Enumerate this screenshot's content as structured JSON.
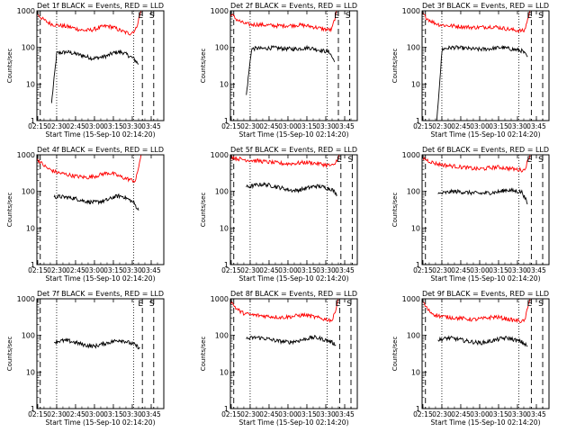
{
  "figure": {
    "start_time_label": "Start Time (15-Sep-10 02:14:20)",
    "ylabel": "Counts/sec",
    "markers": {
      "e": "E",
      "s": "S"
    }
  },
  "colors": {
    "events": "#000000",
    "lld": "#ff0000"
  },
  "chart_data": [
    {
      "type": "line",
      "title": "Det 1f BLACK = Events, RED = LLD",
      "xlabel": "Start Time (15-Sep-10 02:14:20)",
      "ylabel": "Counts/sec",
      "x_range": [
        "02:14:20",
        "03:55:00"
      ],
      "ylim": [
        1,
        1000
      ],
      "y_scale": "log",
      "x_ticks": [
        "02:15",
        "02:30",
        "02:45",
        "03:00",
        "03:15",
        "03:30",
        "03:45"
      ],
      "y_ticks": [
        "1",
        "10",
        "100",
        "1000"
      ],
      "series": [
        {
          "name": "Events",
          "color": "#000000",
          "x_start": "02:26",
          "x_end": "03:35",
          "values": [
            3,
            70,
            72,
            75,
            70,
            65,
            60,
            55,
            50,
            52,
            55,
            60,
            70,
            75,
            72,
            60,
            50,
            35
          ]
        },
        {
          "name": "LLD",
          "color": "#ff0000",
          "x_start": "02:14:20",
          "x_end": "03:37",
          "values": [
            850,
            600,
            480,
            420,
            400,
            380,
            360,
            330,
            300,
            290,
            300,
            330,
            370,
            380,
            350,
            300,
            260,
            240,
            300,
            1000
          ]
        }
      ],
      "vlines": {
        "dotted": [
          "02:30",
          "03:31"
        ],
        "dashed": [
          "02:17",
          "03:38",
          "03:47"
        ]
      },
      "markers": [
        "E",
        "S"
      ]
    },
    {
      "type": "line",
      "title": "Det 2f BLACK = Events, RED = LLD",
      "xlabel": "Start Time (15-Sep-10 02:14:20)",
      "ylabel": "Counts/sec",
      "x_range": [
        "02:14:20",
        "03:55:00"
      ],
      "ylim": [
        1,
        1000
      ],
      "y_scale": "log",
      "x_ticks": [
        "02:15",
        "02:30",
        "02:45",
        "03:00",
        "03:15",
        "03:30",
        "03:45"
      ],
      "y_ticks": [
        "1",
        "10",
        "100",
        "1000"
      ],
      "series": [
        {
          "name": "Events",
          "color": "#000000",
          "x_start": "02:27",
          "x_end": "03:37",
          "values": [
            5,
            90,
            95,
            92,
            95,
            98,
            95,
            93,
            92,
            90,
            92,
            95,
            98,
            92,
            85,
            80,
            75,
            40
          ]
        },
        {
          "name": "LLD",
          "color": "#ff0000",
          "x_start": "02:14:20",
          "x_end": "03:39",
          "values": [
            850,
            600,
            480,
            430,
            420,
            420,
            410,
            400,
            390,
            390,
            395,
            400,
            410,
            400,
            380,
            360,
            330,
            310,
            300,
            1000
          ]
        }
      ],
      "vlines": {
        "dotted": [
          "02:30",
          "03:31"
        ],
        "dashed": [
          "02:17",
          "03:40",
          "03:49"
        ]
      },
      "markers": [
        "E",
        "S"
      ]
    },
    {
      "type": "line",
      "title": "Det 3f BLACK = Events, RED = LLD",
      "xlabel": "Start Time (15-Sep-10 02:14:20)",
      "ylabel": "Counts/sec",
      "x_range": [
        "02:14:20",
        "03:55:00"
      ],
      "ylim": [
        1,
        1000
      ],
      "y_scale": "log",
      "x_ticks": [
        "02:15",
        "02:30",
        "02:45",
        "03:00",
        "03:15",
        "03:30",
        "03:45"
      ],
      "y_ticks": [
        "1",
        "10",
        "100",
        "1000"
      ],
      "series": [
        {
          "name": "Events",
          "color": "#000000",
          "x_start": "02:26",
          "x_end": "03:38",
          "values": [
            1,
            90,
            95,
            100,
            98,
            95,
            92,
            90,
            88,
            90,
            92,
            95,
            100,
            95,
            90,
            85,
            80,
            55
          ]
        },
        {
          "name": "LLD",
          "color": "#ff0000",
          "x_start": "02:14:20",
          "x_end": "03:40",
          "values": [
            850,
            600,
            480,
            420,
            400,
            390,
            380,
            370,
            360,
            350,
            355,
            360,
            370,
            360,
            340,
            320,
            300,
            290,
            280,
            1000
          ]
        }
      ],
      "vlines": {
        "dotted": [
          "02:30",
          "03:31"
        ],
        "dashed": [
          "02:17",
          "03:41",
          "03:50"
        ]
      },
      "markers": [
        "E",
        "S"
      ]
    },
    {
      "type": "line",
      "title": "Det 4f BLACK = Events, RED = LLD",
      "xlabel": "Start Time (15-Sep-10 02:14:20)",
      "ylabel": "Counts/sec",
      "x_range": [
        "02:14:20",
        "03:55:00"
      ],
      "ylim": [
        1,
        1000
      ],
      "y_scale": "log",
      "x_ticks": [
        "02:15",
        "02:30",
        "02:45",
        "03:00",
        "03:15",
        "03:30",
        "03:45"
      ],
      "y_ticks": [
        "1",
        "10",
        "100",
        "1000"
      ],
      "series": [
        {
          "name": "Events",
          "color": "#000000",
          "x_start": "02:28",
          "x_end": "03:35",
          "values": [
            70,
            72,
            70,
            68,
            65,
            60,
            55,
            52,
            50,
            52,
            55,
            60,
            70,
            75,
            72,
            60,
            50,
            30
          ]
        },
        {
          "name": "LLD",
          "color": "#ff0000",
          "x_start": "02:14:20",
          "x_end": "03:37",
          "values": [
            800,
            550,
            420,
            360,
            320,
            300,
            280,
            260,
            250,
            240,
            250,
            270,
            300,
            320,
            300,
            260,
            230,
            210,
            190,
            1000
          ]
        }
      ],
      "vlines": {
        "dotted": [
          "02:30",
          "03:31"
        ],
        "dashed": [
          "02:17"
        ]
      },
      "markers": []
    },
    {
      "type": "line",
      "title": "Det 5f BLACK = Events, RED = LLD",
      "xlabel": "Start Time (15-Sep-10 02:14:20)",
      "ylabel": "Counts/sec",
      "x_range": [
        "02:14:20",
        "03:55:00"
      ],
      "ylim": [
        1,
        1000
      ],
      "y_scale": "log",
      "x_ticks": [
        "02:15",
        "02:30",
        "02:45",
        "03:00",
        "03:15",
        "03:30",
        "03:45"
      ],
      "y_ticks": [
        "1",
        "10",
        "100",
        "1000"
      ],
      "series": [
        {
          "name": "Events",
          "color": "#000000",
          "x_start": "02:27",
          "x_end": "03:39",
          "values": [
            130,
            140,
            150,
            155,
            150,
            140,
            130,
            120,
            110,
            105,
            110,
            120,
            130,
            140,
            135,
            125,
            115,
            80
          ]
        },
        {
          "name": "LLD",
          "color": "#ff0000",
          "x_start": "02:14:20",
          "x_end": "03:41",
          "values": [
            900,
            800,
            750,
            720,
            700,
            680,
            650,
            620,
            600,
            580,
            570,
            580,
            600,
            620,
            610,
            580,
            550,
            520,
            500,
            1000
          ]
        }
      ],
      "vlines": {
        "dotted": [
          "02:30",
          "03:31"
        ],
        "dashed": [
          "02:17",
          "03:42",
          "03:51"
        ]
      },
      "markers": [
        "E",
        "S"
      ]
    },
    {
      "type": "line",
      "title": "Det 6f BLACK = Events, RED = LLD",
      "xlabel": "Start Time (15-Sep-10 02:14:20)",
      "ylabel": "Counts/sec",
      "x_range": [
        "02:14:20",
        "03:55:00"
      ],
      "ylim": [
        1,
        1000
      ],
      "y_scale": "log",
      "x_ticks": [
        "02:15",
        "02:30",
        "02:45",
        "03:00",
        "03:15",
        "03:30",
        "03:45"
      ],
      "y_ticks": [
        "1",
        "10",
        "100",
        "1000"
      ],
      "series": [
        {
          "name": "Events",
          "color": "#000000",
          "x_start": "02:27",
          "x_end": "03:38",
          "values": [
            85,
            90,
            95,
            100,
            98,
            95,
            92,
            90,
            88,
            90,
            92,
            95,
            100,
            110,
            105,
            100,
            95,
            45
          ]
        },
        {
          "name": "LLD",
          "color": "#ff0000",
          "x_start": "02:14:20",
          "x_end": "03:40",
          "values": [
            850,
            700,
            600,
            550,
            520,
            500,
            480,
            460,
            440,
            420,
            410,
            420,
            440,
            460,
            450,
            430,
            410,
            390,
            380,
            1000
          ]
        }
      ],
      "vlines": {
        "dotted": [
          "02:30",
          "03:31"
        ],
        "dashed": [
          "02:17",
          "03:41",
          "03:50"
        ]
      },
      "markers": [
        "E",
        "S"
      ]
    },
    {
      "type": "line",
      "title": "Det 7f BLACK = Events, RED = LLD",
      "xlabel": "Start Time (15-Sep-10 02:14:20)",
      "ylabel": "Counts/sec",
      "x_range": [
        "02:14:20",
        "03:55:00"
      ],
      "ylim": [
        1,
        1000
      ],
      "y_scale": "log",
      "x_ticks": [
        "02:15",
        "02:30",
        "02:45",
        "03:00",
        "03:15",
        "03:30",
        "03:45"
      ],
      "y_ticks": [
        "1",
        "10",
        "100",
        "1000"
      ],
      "series": [
        {
          "name": "Events",
          "color": "#000000",
          "x_start": "02:28",
          "x_end": "03:36",
          "values": [
            65,
            70,
            72,
            70,
            65,
            60,
            55,
            52,
            50,
            55,
            60,
            65,
            70,
            75,
            70,
            62,
            55,
            45
          ]
        }
      ],
      "vlines": {
        "dotted": [
          "02:30",
          "03:31"
        ],
        "dashed": [
          "02:17",
          "03:38",
          "03:47"
        ]
      },
      "markers": [
        "E",
        "S"
      ]
    },
    {
      "type": "line",
      "title": "Det 8f BLACK = Events, RED = LLD",
      "xlabel": "Start Time (15-Sep-10 02:14:20)",
      "ylabel": "Counts/sec",
      "x_range": [
        "02:14:20",
        "03:55:00"
      ],
      "ylim": [
        1,
        1000
      ],
      "y_scale": "log",
      "x_ticks": [
        "02:15",
        "02:30",
        "02:45",
        "03:00",
        "03:15",
        "03:30",
        "03:45"
      ],
      "y_ticks": [
        "1",
        "10",
        "100",
        "1000"
      ],
      "series": [
        {
          "name": "Events",
          "color": "#000000",
          "x_start": "02:27",
          "x_end": "03:38",
          "values": [
            80,
            85,
            88,
            85,
            80,
            75,
            70,
            68,
            65,
            68,
            72,
            78,
            85,
            88,
            82,
            75,
            68,
            55
          ]
        },
        {
          "name": "LLD",
          "color": "#ff0000",
          "x_start": "02:14:20",
          "x_end": "03:40",
          "values": [
            900,
            550,
            420,
            380,
            360,
            350,
            340,
            330,
            320,
            310,
            320,
            330,
            350,
            360,
            340,
            310,
            290,
            270,
            260,
            1000
          ]
        }
      ],
      "vlines": {
        "dotted": [
          "02:30",
          "03:31"
        ],
        "dashed": [
          "02:17",
          "03:41",
          "03:50"
        ]
      },
      "markers": [
        "E",
        "S"
      ]
    },
    {
      "type": "line",
      "title": "Det 9f BLACK = Events, RED = LLD",
      "xlabel": "Start Time (15-Sep-10 02:14:20)",
      "ylabel": "Counts/sec",
      "x_range": [
        "02:14:20",
        "03:55:00"
      ],
      "ylim": [
        1,
        1000
      ],
      "y_scale": "log",
      "x_ticks": [
        "02:15",
        "02:30",
        "02:45",
        "03:00",
        "03:15",
        "03:30",
        "03:45"
      ],
      "y_ticks": [
        "1",
        "10",
        "100",
        "1000"
      ],
      "series": [
        {
          "name": "Events",
          "color": "#000000",
          "x_start": "02:27",
          "x_end": "03:38",
          "values": [
            75,
            80,
            85,
            82,
            78,
            72,
            68,
            65,
            62,
            65,
            70,
            75,
            82,
            85,
            80,
            72,
            65,
            50
          ]
        },
        {
          "name": "LLD",
          "color": "#ff0000",
          "x_start": "02:14:20",
          "x_end": "03:40",
          "values": [
            900,
            500,
            380,
            340,
            320,
            310,
            300,
            290,
            280,
            270,
            280,
            290,
            310,
            320,
            300,
            280,
            260,
            250,
            240,
            1000
          ]
        }
      ],
      "vlines": {
        "dotted": [
          "02:30",
          "03:31"
        ],
        "dashed": [
          "02:17",
          "03:41",
          "03:50"
        ]
      },
      "markers": [
        "E",
        "S"
      ]
    }
  ]
}
